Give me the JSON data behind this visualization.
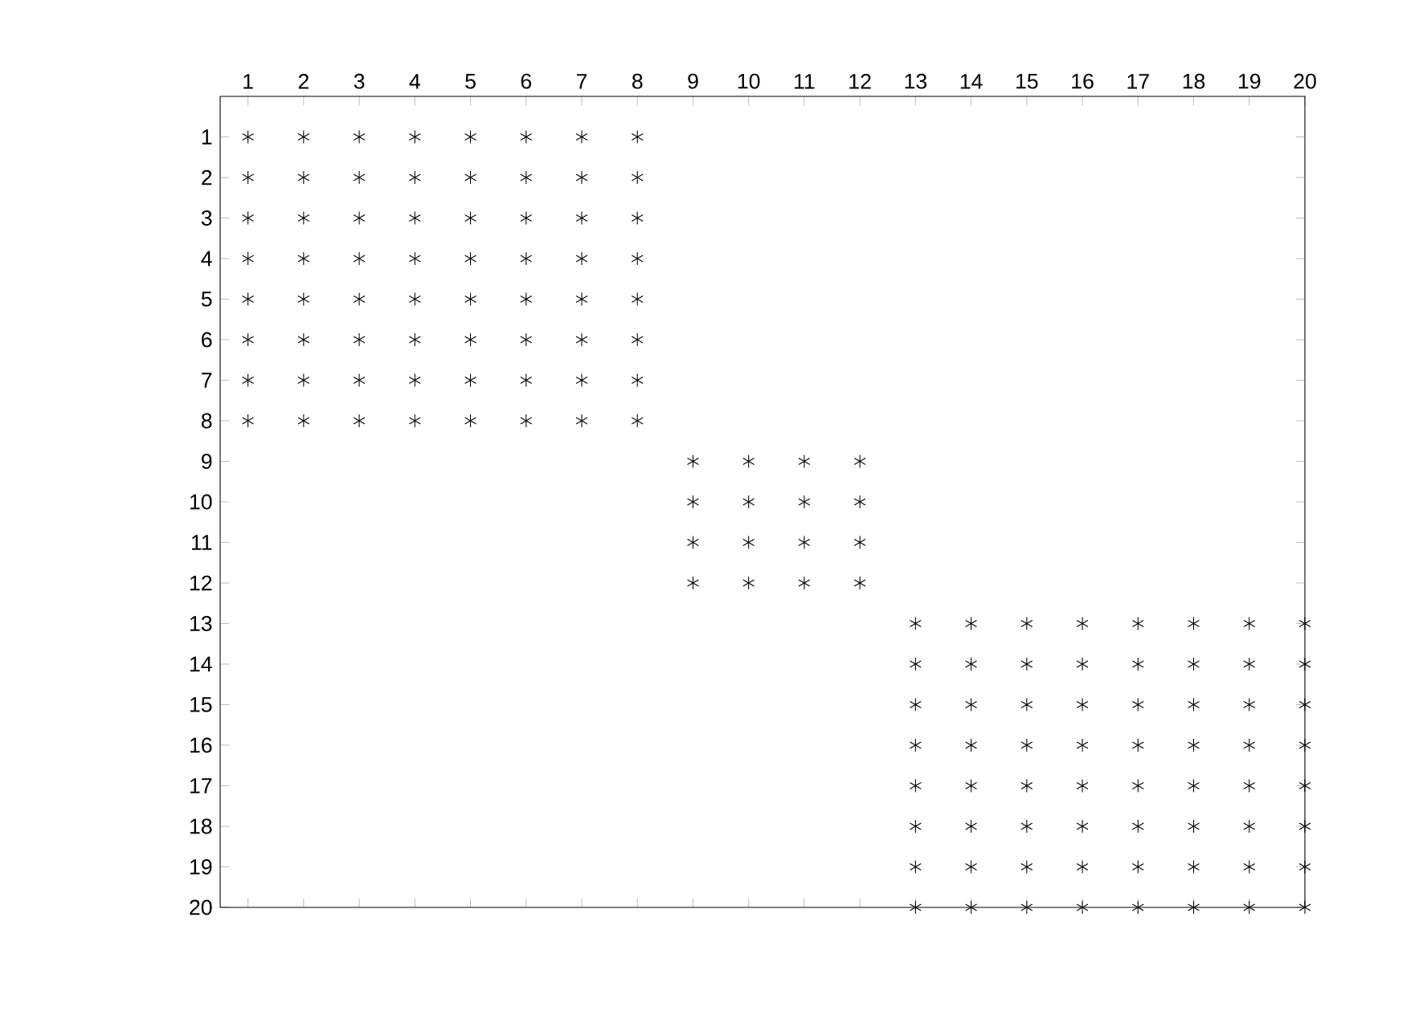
{
  "chart_data": {
    "type": "scatter",
    "xlim": [
      0.5,
      20
    ],
    "ylim": [
      20,
      0
    ],
    "xticks": [
      1,
      2,
      3,
      4,
      5,
      6,
      7,
      8,
      9,
      10,
      11,
      12,
      13,
      14,
      15,
      16,
      17,
      18,
      19,
      20
    ],
    "yticks": [
      1,
      2,
      3,
      4,
      5,
      6,
      7,
      8,
      9,
      10,
      11,
      12,
      13,
      14,
      15,
      16,
      17,
      18,
      19,
      20
    ],
    "grid": false,
    "marker": "cross",
    "series": [
      {
        "color": "#000000",
        "x": [
          1,
          2,
          3,
          4,
          5,
          6,
          7,
          8,
          1,
          2,
          3,
          4,
          5,
          6,
          7,
          8,
          1,
          2,
          3,
          4,
          5,
          6,
          7,
          8,
          1,
          2,
          3,
          4,
          5,
          6,
          7,
          8,
          1,
          2,
          3,
          4,
          5,
          6,
          7,
          8,
          1,
          2,
          3,
          4,
          5,
          6,
          7,
          8,
          1,
          2,
          3,
          4,
          5,
          6,
          7,
          8,
          1,
          2,
          3,
          4,
          5,
          6,
          7,
          8
        ],
        "values": [
          1,
          1,
          1,
          1,
          1,
          1,
          1,
          1,
          2,
          2,
          2,
          2,
          2,
          2,
          2,
          2,
          3,
          3,
          3,
          3,
          3,
          3,
          3,
          3,
          4,
          4,
          4,
          4,
          4,
          4,
          4,
          4,
          5,
          5,
          5,
          5,
          5,
          5,
          5,
          5,
          6,
          6,
          6,
          6,
          6,
          6,
          6,
          6,
          7,
          7,
          7,
          7,
          7,
          7,
          7,
          7,
          8,
          8,
          8,
          8,
          8,
          8,
          8,
          8
        ]
      },
      {
        "color": "#000000",
        "x": [
          9,
          10,
          11,
          12,
          9,
          10,
          11,
          12,
          9,
          10,
          11,
          12,
          9,
          10,
          11,
          12
        ],
        "values": [
          9,
          9,
          9,
          9,
          10,
          10,
          10,
          10,
          11,
          11,
          11,
          11,
          12,
          12,
          12,
          12
        ]
      },
      {
        "color": "#000000",
        "x": [
          13,
          14,
          15,
          16,
          17,
          18,
          19,
          20,
          13,
          14,
          15,
          16,
          17,
          18,
          19,
          20,
          13,
          14,
          15,
          16,
          17,
          18,
          19,
          20,
          13,
          14,
          15,
          16,
          17,
          18,
          19,
          20,
          13,
          14,
          15,
          16,
          17,
          18,
          19,
          20,
          13,
          14,
          15,
          16,
          17,
          18,
          19,
          20,
          13,
          14,
          15,
          16,
          17,
          18,
          19,
          20,
          13,
          14,
          15,
          16,
          17,
          18,
          19,
          20
        ],
        "values": [
          13,
          13,
          13,
          13,
          13,
          13,
          13,
          13,
          14,
          14,
          14,
          14,
          14,
          14,
          14,
          14,
          15,
          15,
          15,
          15,
          15,
          15,
          15,
          15,
          16,
          16,
          16,
          16,
          16,
          16,
          16,
          16,
          17,
          17,
          17,
          17,
          17,
          17,
          17,
          17,
          18,
          18,
          18,
          18,
          18,
          18,
          18,
          18,
          19,
          19,
          19,
          19,
          19,
          19,
          19,
          19,
          20,
          20,
          20,
          20,
          20,
          20,
          20,
          20
        ]
      }
    ]
  }
}
